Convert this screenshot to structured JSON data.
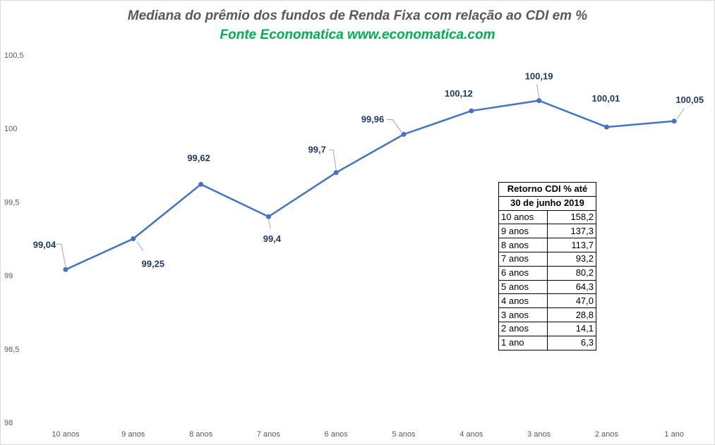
{
  "chart_data": {
    "type": "line",
    "title": "Mediana do prêmio dos fundos de Renda Fixa com relação ao CDI em %",
    "subtitle": "Fonte Economatica www.economatica.com",
    "categories": [
      "10 anos",
      "9 anos",
      "8 anos",
      "7 anos",
      "6 anos",
      "5 anos",
      "4 anos",
      "3 anos",
      "2 anos",
      "1 ano"
    ],
    "series": [
      {
        "values": [
          99.04,
          99.25,
          99.62,
          99.4,
          99.7,
          99.96,
          100.12,
          100.19,
          100.01,
          100.05
        ],
        "labels": [
          "99,04",
          "99,25",
          "99,62",
          "99,4",
          "99,7",
          "99,96",
          "100,12",
          "100,19",
          "100,01",
          "100,05"
        ],
        "color": "#4472c4"
      }
    ],
    "ylim": [
      98,
      100.5
    ],
    "yticks": [
      {
        "value": 98,
        "label": "98"
      },
      {
        "value": 98.5,
        "label": "98,5"
      },
      {
        "value": 99,
        "label": "99"
      },
      {
        "value": 99.5,
        "label": "99,5"
      },
      {
        "value": 100,
        "label": "100"
      },
      {
        "value": 100.5,
        "label": "100,5"
      }
    ],
    "grid": false,
    "legend": "none"
  },
  "table": {
    "header_line1": "Retorno CDI % até",
    "header_line2": "30 de junho 2019",
    "rows": [
      {
        "label": "10 anos",
        "value": "158,2"
      },
      {
        "label": "9 anos",
        "value": "137,3"
      },
      {
        "label": "8 anos",
        "value": "113,7"
      },
      {
        "label": "7 anos",
        "value": "93,2"
      },
      {
        "label": "6 anos",
        "value": "80,2"
      },
      {
        "label": "5 anos",
        "value": "64,3"
      },
      {
        "label": "4 anos",
        "value": "47,0"
      },
      {
        "label": "3 anos",
        "value": "28,8"
      },
      {
        "label": "2 anos",
        "value": "14,1"
      },
      {
        "label": "1 ano",
        "value": "6,3"
      }
    ]
  },
  "colors": {
    "line": "#4472c4",
    "data_label": "#1f3864",
    "title": "#595959",
    "subtitle": "#00b050"
  }
}
